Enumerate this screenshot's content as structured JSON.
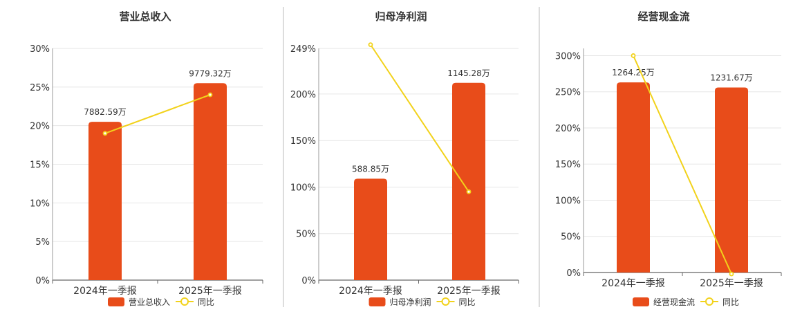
{
  "chart_data": [
    {
      "type": "bar",
      "title": "营业总收入",
      "categories": [
        "2024年一季报",
        "2025年一季报"
      ],
      "bar_series": {
        "name": "营业总收入",
        "values": [
          7882.59,
          9779.32
        ],
        "labels": [
          "7882.59万",
          "9779.32万"
        ],
        "color": "#e84c1a"
      },
      "line_series": {
        "name": "同比",
        "values": [
          19.0,
          24.0
        ],
        "color": "#f2d21b"
      },
      "y_ticks": [
        "0%",
        "5%",
        "10%",
        "15%",
        "20%",
        "25%",
        "30%"
      ],
      "ylim": [
        0,
        30
      ],
      "bar_heights_pct": [
        20.5,
        25.5
      ],
      "grid": true,
      "legend": "bottom"
    },
    {
      "type": "bar",
      "title": "归母净利润",
      "categories": [
        "2024年一季报",
        "2025年一季报"
      ],
      "bar_series": {
        "name": "归母净利润",
        "values": [
          588.85,
          1145.28
        ],
        "labels": [
          "588.85万",
          "1145.28万"
        ],
        "color": "#e84c1a"
      },
      "line_series": {
        "name": "同比",
        "values": [
          253.0,
          95.0
        ],
        "color": "#f2d21b"
      },
      "y_ticks": [
        "0%",
        "50%",
        "100%",
        "150%",
        "200%",
        "249%"
      ],
      "ylim": [
        0,
        249
      ],
      "bar_heights_pct": [
        109,
        212
      ],
      "grid": true,
      "legend": "bottom"
    },
    {
      "type": "bar",
      "title": "经营现金流",
      "categories": [
        "2024年一季报",
        "2025年一季报"
      ],
      "bar_series": {
        "name": "经营现金流",
        "values": [
          1264.25,
          1231.67
        ],
        "labels": [
          "1264.25万",
          "1231.67万"
        ],
        "color": "#e84c1a"
      },
      "line_series": {
        "name": "同比",
        "values": [
          300.0,
          -2.0
        ],
        "color": "#f2d21b"
      },
      "y_ticks": [
        "0%",
        "50%",
        "100%",
        "150%",
        "200%",
        "250%",
        "300%"
      ],
      "ylim": [
        0,
        310
      ],
      "bar_heights_pct": [
        263,
        256
      ],
      "grid": true,
      "legend": "bottom"
    }
  ]
}
